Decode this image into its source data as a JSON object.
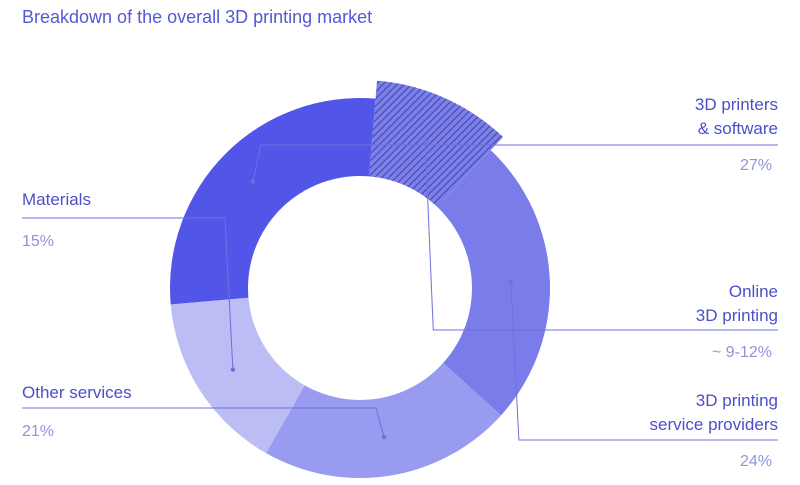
{
  "chart_data": {
    "type": "pie",
    "title": "Breakdown of the overall 3D printing market",
    "slices": [
      {
        "label_lines": [
          "3D printers",
          "& software"
        ],
        "value": 27,
        "value_label": "27%",
        "color": "#5256e8",
        "pattern": "solid"
      },
      {
        "label_lines": [
          "Online",
          "3D printing"
        ],
        "value": 10.5,
        "value_label": "~ 9-12%",
        "color": "#7376e0",
        "pattern": "hatched"
      },
      {
        "label_lines": [
          "3D printing",
          "service providers"
        ],
        "value": 24,
        "value_label": "24%",
        "color": "#7a7de9",
        "pattern": "solid"
      },
      {
        "label_lines": [
          "Other services"
        ],
        "value": 21,
        "value_label": "21%",
        "color": "#989bef",
        "pattern": "solid"
      },
      {
        "label_lines": [
          "Materials"
        ],
        "value": 15,
        "value_label": "15%",
        "color": "#bcbdf5",
        "pattern": "solid"
      }
    ],
    "legend": "none",
    "donut": true
  },
  "colors": {
    "title": "#5458d6",
    "label": "#4b4fc9",
    "percent": "#9093d8",
    "leader": "#6d70dd"
  }
}
